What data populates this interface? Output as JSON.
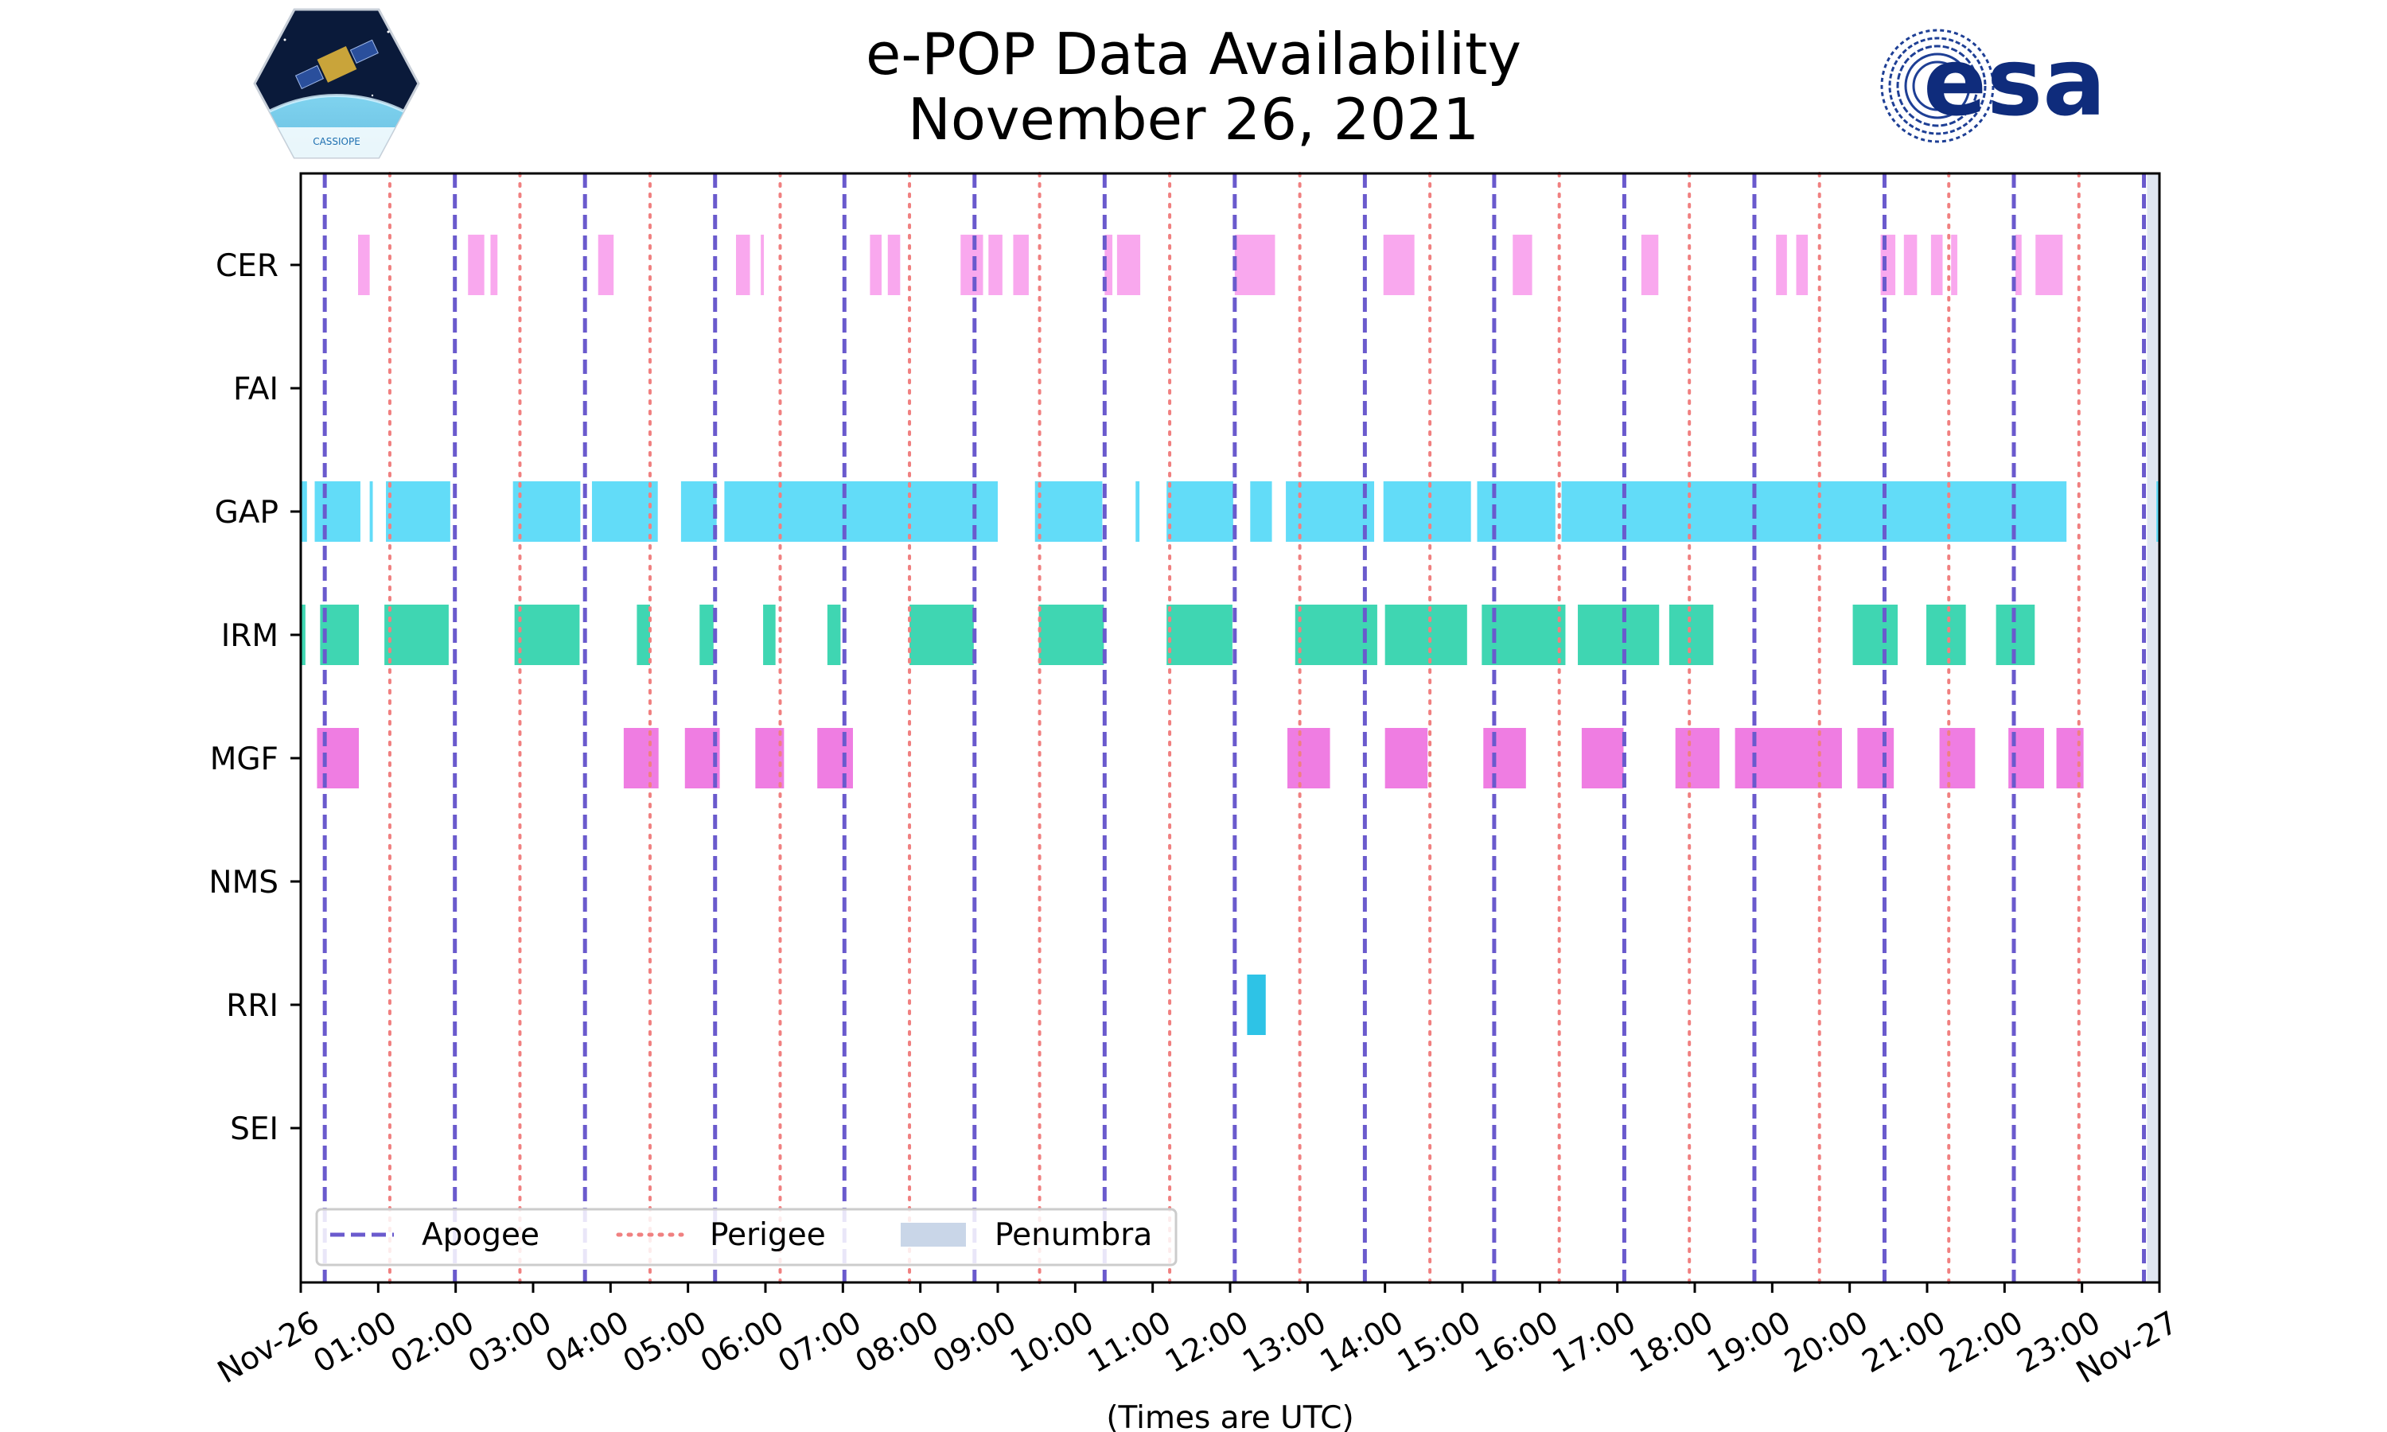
{
  "chart_data": {
    "type": "timeline",
    "title": "e-POP Data Availability",
    "subtitle": "November 26, 2021",
    "xlabel": "(Times are UTC)",
    "xlim_hours": [
      0,
      24
    ],
    "x_ticks": [
      "Nov-26",
      "01:00",
      "02:00",
      "03:00",
      "04:00",
      "05:00",
      "06:00",
      "07:00",
      "08:00",
      "09:00",
      "10:00",
      "11:00",
      "12:00",
      "13:00",
      "14:00",
      "15:00",
      "16:00",
      "17:00",
      "18:00",
      "19:00",
      "20:00",
      "21:00",
      "22:00",
      "23:00",
      "Nov-27"
    ],
    "instruments": [
      "CER",
      "FAI",
      "GAP",
      "IRM",
      "MGF",
      "NMS",
      "RRI",
      "SEI"
    ],
    "colors": {
      "CER": "#f9a8ee",
      "FAI": "#f9a8ee",
      "GAP": "#62dcf8",
      "IRM": "#3fd6b2",
      "MGF": "#ef7de2",
      "NMS": "#ef7de2",
      "RRI": "#2ec3e6",
      "SEI": "#2ec3e6",
      "apogee": "#6a5acd",
      "perigee": "#f08080",
      "penumbra": "#c9d6e8"
    },
    "apogee_hours": [
      0.31,
      1.99,
      3.67,
      5.35,
      7.02,
      8.7,
      10.38,
      12.06,
      13.74,
      15.41,
      17.09,
      18.77,
      20.45,
      22.12,
      23.8
    ],
    "perigee_hours": [
      1.15,
      2.83,
      4.51,
      6.19,
      7.86,
      9.54,
      11.22,
      12.9,
      14.58,
      16.25,
      17.93,
      19.61,
      21.28,
      22.96
    ],
    "segments": {
      "CER": [
        [
          0.74,
          0.89
        ],
        [
          2.16,
          2.37
        ],
        [
          2.45,
          2.54
        ],
        [
          3.84,
          4.04
        ],
        [
          5.62,
          5.8
        ],
        [
          5.94,
          5.98
        ],
        [
          7.35,
          7.5
        ],
        [
          7.58,
          7.74
        ],
        [
          8.52,
          8.81
        ],
        [
          8.88,
          9.06
        ],
        [
          9.2,
          9.4
        ],
        [
          10.38,
          10.48
        ],
        [
          10.54,
          10.84
        ],
        [
          12.06,
          12.58
        ],
        [
          13.98,
          14.38
        ],
        [
          15.65,
          15.9
        ],
        [
          17.31,
          17.53
        ],
        [
          19.05,
          19.19
        ],
        [
          19.31,
          19.46
        ],
        [
          20.4,
          20.59
        ],
        [
          20.7,
          20.87
        ],
        [
          21.05,
          21.2
        ],
        [
          21.31,
          21.39
        ],
        [
          22.14,
          22.22
        ],
        [
          22.4,
          22.75
        ]
      ],
      "FAI": [],
      "GAP": [
        [
          0.0,
          0.08
        ],
        [
          0.18,
          0.77
        ],
        [
          0.89,
          0.93
        ],
        [
          1.1,
          1.93
        ],
        [
          2.74,
          3.61
        ],
        [
          3.76,
          4.61
        ],
        [
          4.91,
          5.37
        ],
        [
          5.47,
          9.0
        ],
        [
          9.48,
          10.35
        ],
        [
          10.78,
          10.83
        ],
        [
          11.18,
          12.04
        ],
        [
          12.26,
          12.54
        ],
        [
          12.72,
          13.86
        ],
        [
          13.98,
          15.11
        ],
        [
          15.19,
          16.2
        ],
        [
          16.28,
          22.8
        ],
        [
          23.96,
          24.0
        ]
      ],
      "IRM": [
        [
          0.0,
          0.06
        ],
        [
          0.25,
          0.75
        ],
        [
          1.08,
          1.91
        ],
        [
          2.76,
          3.6
        ],
        [
          4.34,
          4.51
        ],
        [
          5.15,
          5.33
        ],
        [
          5.97,
          6.13
        ],
        [
          6.8,
          6.97
        ],
        [
          7.86,
          8.69
        ],
        [
          9.53,
          10.37
        ],
        [
          11.18,
          12.03
        ],
        [
          12.84,
          13.9
        ],
        [
          14.0,
          15.06
        ],
        [
          15.25,
          16.33
        ],
        [
          16.49,
          17.54
        ],
        [
          17.67,
          18.24
        ],
        [
          20.04,
          20.62
        ],
        [
          20.99,
          21.5
        ],
        [
          21.89,
          22.39
        ]
      ],
      "MGF": [
        [
          0.21,
          0.75
        ],
        [
          4.17,
          4.62
        ],
        [
          4.96,
          5.41
        ],
        [
          5.87,
          6.24
        ],
        [
          6.67,
          7.13
        ],
        [
          12.74,
          13.29
        ],
        [
          14.0,
          14.55
        ],
        [
          15.27,
          15.82
        ],
        [
          16.54,
          17.08
        ],
        [
          17.75,
          18.32
        ],
        [
          18.52,
          19.9
        ],
        [
          20.1,
          20.57
        ],
        [
          21.16,
          21.62
        ],
        [
          22.05,
          22.51
        ],
        [
          22.67,
          23.02
        ]
      ],
      "NMS": [],
      "RRI": [
        [
          12.22,
          12.46
        ]
      ],
      "SEI": []
    },
    "legend": {
      "position": "lower-left",
      "entries": [
        "Apogee",
        "Perigee",
        "Penumbra"
      ]
    }
  },
  "logos": {
    "esa_text": "esa",
    "cassiope_text": "CASSIOPE"
  }
}
